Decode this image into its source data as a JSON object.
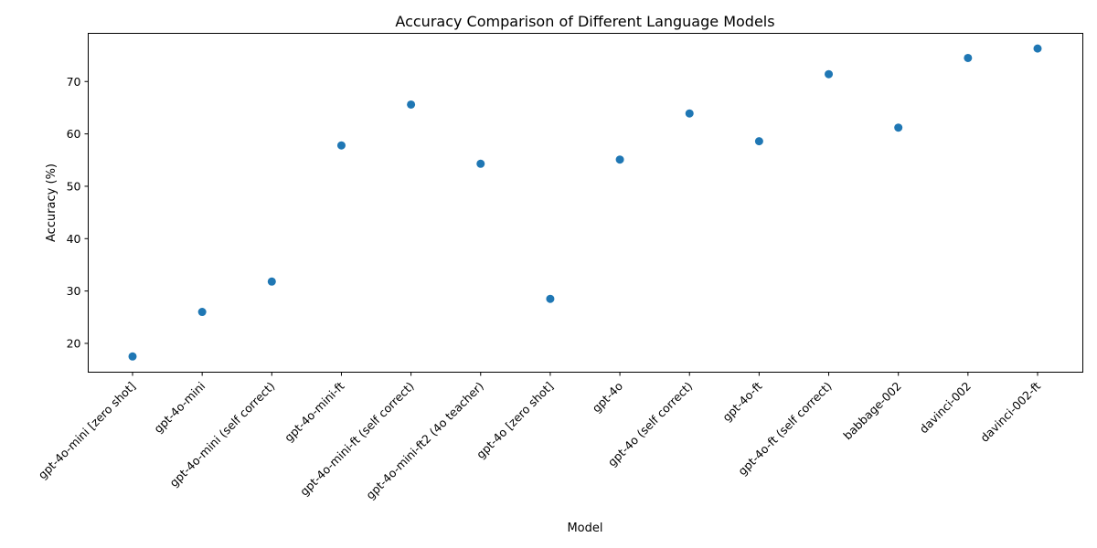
{
  "chart_data": {
    "type": "scatter",
    "title": "Accuracy Comparison of Different Language Models",
    "xlabel": "Model",
    "ylabel": "Accuracy (%)",
    "categories": [
      "gpt-4o-mini [zero shot]",
      "gpt-4o-mini",
      "gpt-4o-mini (self correct)",
      "gpt-4o-mini-ft",
      "gpt-4o-mini-ft (self correct)",
      "gpt-4o-mini-ft2 (4o teacher)",
      "gpt-4o [zero shot]",
      "gpt-4o",
      "gpt-4o (self correct)",
      "gpt-4o-ft",
      "gpt-4o-ft (self correct)",
      "babbage-002",
      "davinci-002",
      "davinci-002-ft"
    ],
    "values": [
      17.5,
      26.0,
      31.8,
      57.8,
      65.6,
      54.3,
      28.5,
      55.1,
      63.9,
      58.6,
      71.4,
      61.2,
      74.5,
      76.3
    ],
    "yticks": [
      20,
      30,
      40,
      50,
      60,
      70
    ],
    "ylim": [
      14.5,
      79.2
    ],
    "grid": false,
    "color": "#1f77b4"
  }
}
